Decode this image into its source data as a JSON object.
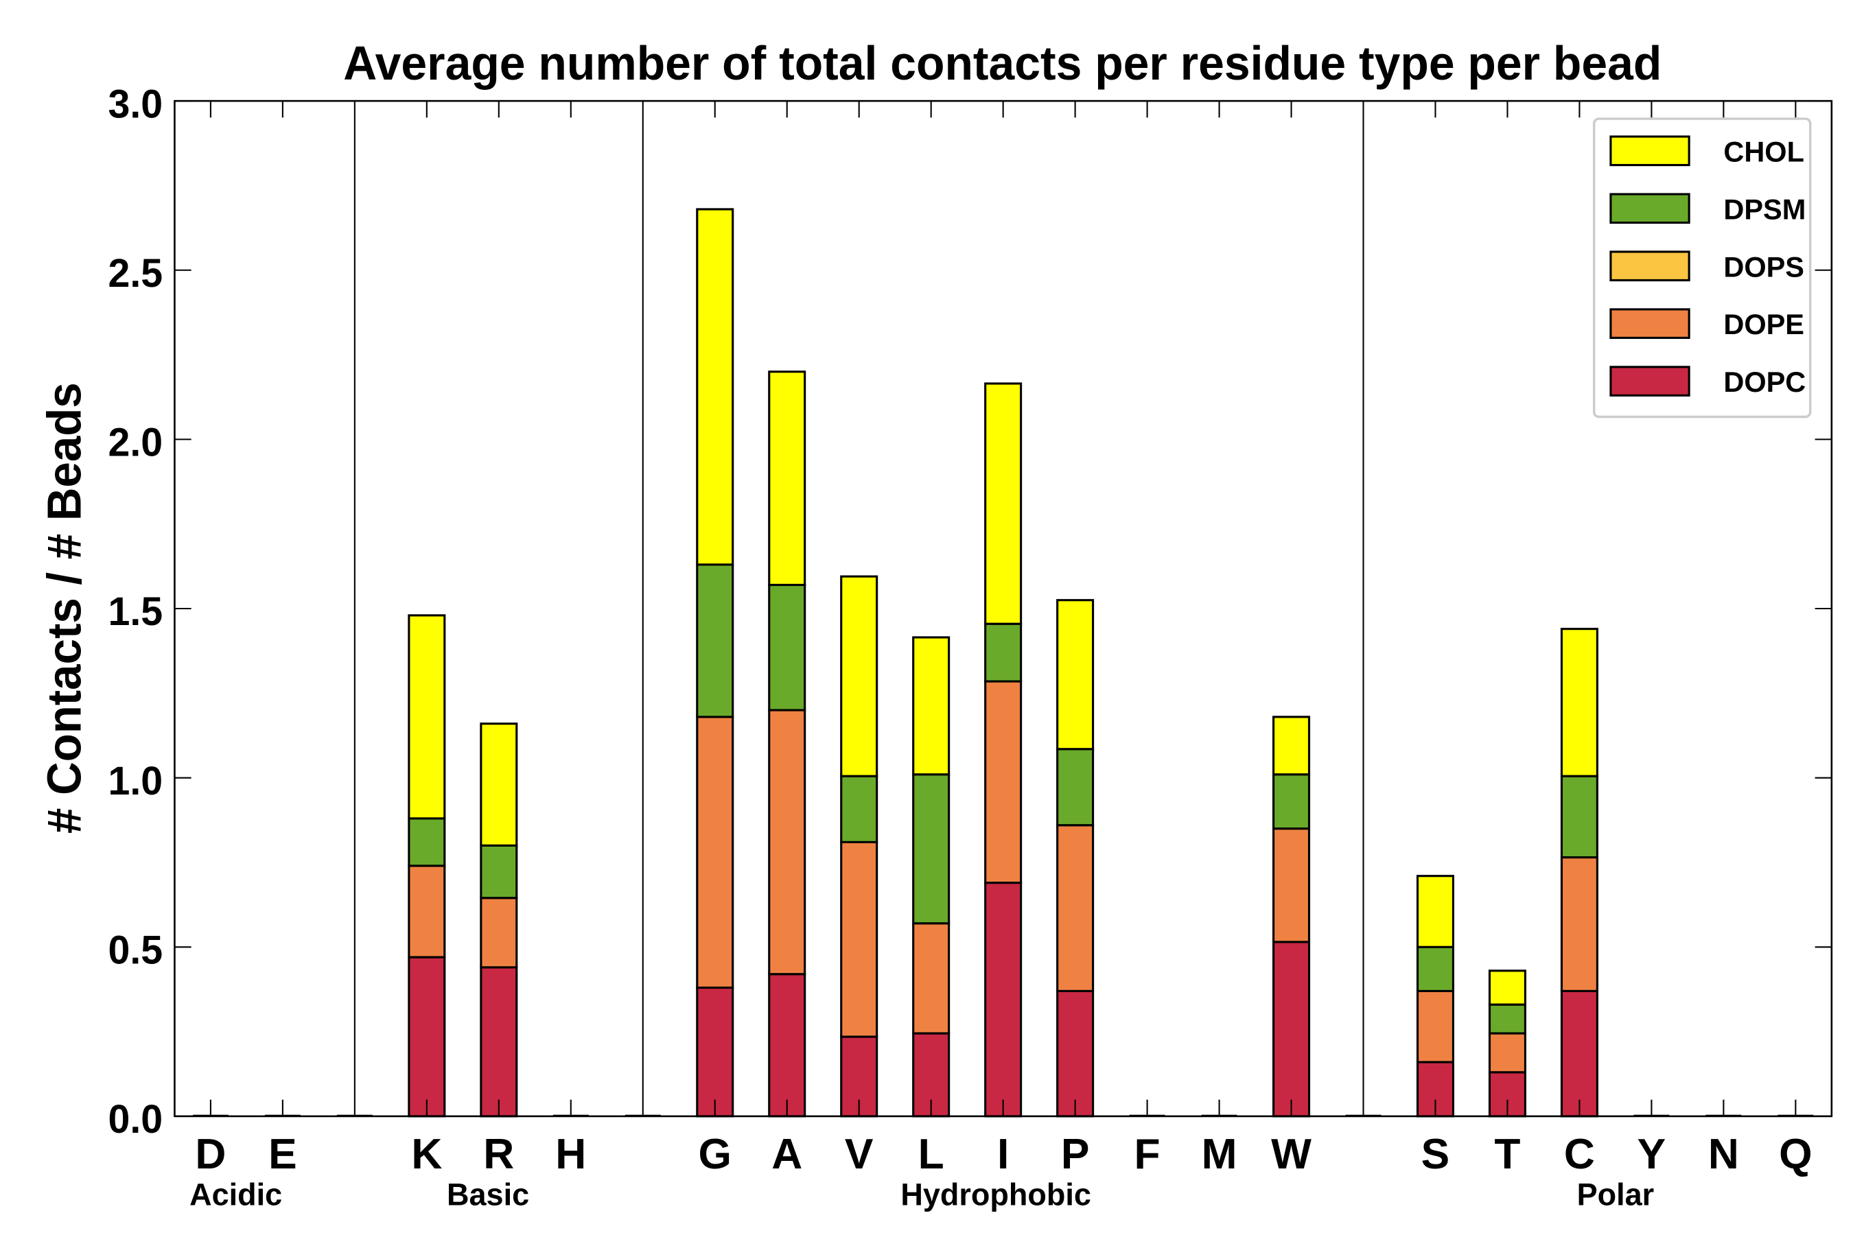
{
  "chart_data": {
    "type": "bar",
    "stacked": true,
    "title": "Average number of total contacts per residue type per bead",
    "xlabel": "",
    "ylabel": "# Contacts / # Beads",
    "ylim": [
      0,
      3.0
    ],
    "yticks": [
      "0.0",
      "0.5",
      "1.0",
      "1.5",
      "2.0",
      "2.5",
      "3.0"
    ],
    "legend_position": "top-right",
    "categories": [
      "D",
      "E",
      "",
      "K",
      "R",
      "H",
      "",
      "G",
      "A",
      "V",
      "L",
      "I",
      "P",
      "F",
      "M",
      "W",
      "",
      "S",
      "T",
      "C",
      "Y",
      "N",
      "Q"
    ],
    "groups": [
      {
        "label": "Acidic",
        "center": 0.35
      },
      {
        "label": "Basic",
        "center": 3.85
      },
      {
        "label": "Hydrophobic",
        "center": 10.9
      },
      {
        "label": "Polar",
        "center": 19.5
      }
    ],
    "separators_after_index": [
      2,
      6,
      16
    ],
    "series": [
      {
        "name": "DOPC",
        "color": "#c82843",
        "values": [
          0,
          0,
          0,
          0.47,
          0.44,
          0,
          0,
          0.38,
          0.42,
          0.235,
          0.245,
          0.69,
          0.37,
          0,
          0,
          0.515,
          0,
          0.16,
          0.13,
          0.37,
          0,
          0,
          0
        ]
      },
      {
        "name": "DOPE",
        "color": "#ef8243",
        "values": [
          0,
          0,
          0,
          0.27,
          0.205,
          0,
          0,
          0.8,
          0.78,
          0.575,
          0.325,
          0.595,
          0.49,
          0,
          0,
          0.335,
          0,
          0.21,
          0.115,
          0.395,
          0,
          0,
          0
        ]
      },
      {
        "name": "DOPS",
        "color": "#fbc441",
        "values": [
          0,
          0,
          0,
          0,
          0,
          0,
          0,
          0,
          0,
          0,
          0,
          0,
          0,
          0,
          0,
          0,
          0,
          0,
          0,
          0,
          0,
          0,
          0
        ]
      },
      {
        "name": "DPSM",
        "color": "#6aaa2a",
        "values": [
          0,
          0,
          0,
          0.14,
          0.155,
          0,
          0,
          0.45,
          0.37,
          0.195,
          0.44,
          0.17,
          0.225,
          0,
          0,
          0.16,
          0,
          0.13,
          0.085,
          0.24,
          0,
          0,
          0
        ]
      },
      {
        "name": "CHOL",
        "color": "#ffff00",
        "values": [
          0,
          0,
          0,
          0.6,
          0.36,
          0,
          0,
          1.05,
          0.63,
          0.59,
          0.405,
          0.71,
          0.44,
          0,
          0,
          0.17,
          0,
          0.21,
          0.1,
          0.435,
          0,
          0,
          0
        ]
      }
    ],
    "legend_order": [
      "CHOL",
      "DPSM",
      "DOPS",
      "DOPE",
      "DOPC"
    ]
  }
}
